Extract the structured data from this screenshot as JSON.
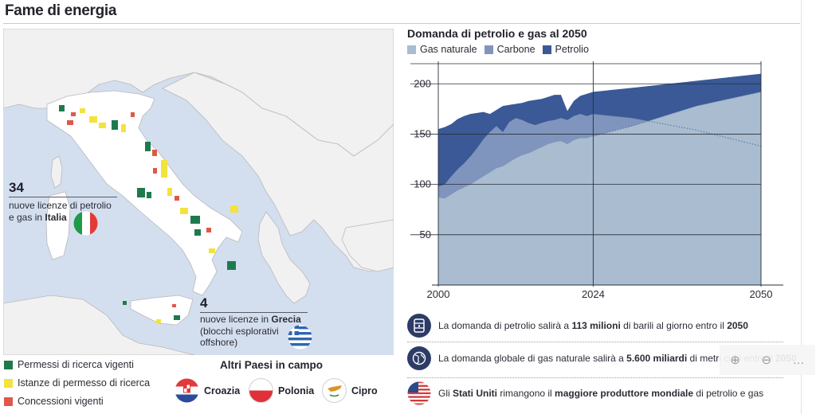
{
  "page": {
    "title": "Fame di energia"
  },
  "map": {
    "italy_count": "34",
    "italy_text_1": "nuove licenze di petrolio",
    "italy_text_2": "e gas in ",
    "italy_country": "Italia",
    "greece_count": "4",
    "greece_text_1": "nuove licenze in ",
    "greece_country": "Grecia",
    "greece_text_2": "(blocchi esplorativi",
    "greece_text_3": "offshore)",
    "colors": {
      "sea": "#d3dfee",
      "land": "#f1f1f1",
      "italy": "#ffffff",
      "border": "#b9b9b9"
    },
    "legend": [
      {
        "label": "Permessi di ricerca vigenti",
        "color": "#1e7a4e"
      },
      {
        "label": "Istanze di permesso di ricerca",
        "color": "#f3e33c"
      },
      {
        "label": "Concessioni vigenti",
        "color": "#e0584a"
      }
    ],
    "other_countries_title": "Altri Paesi in campo",
    "other_countries": [
      "Croazia",
      "Polonia",
      "Cipro"
    ]
  },
  "chart_data": {
    "type": "area",
    "title": "Domanda di petrolio e gas al 2050",
    "legend": [
      "Gas naturale",
      "Carbone",
      "Petrolio"
    ],
    "colors": {
      "Gas naturale": "#a9bcd0",
      "Carbone": "#7f95bd",
      "Petrolio": "#3a5996"
    },
    "x_ticks": [
      "2000",
      "2024",
      "2050"
    ],
    "y_ticks": [
      50,
      100,
      150,
      200
    ],
    "xlim": [
      2000,
      2050
    ],
    "ylim": [
      0,
      220
    ],
    "projection_start": 2024,
    "series": [
      {
        "name": "Gas naturale",
        "x": [
          2000,
          2001,
          2002,
          2003,
          2004,
          2005,
          2006,
          2007,
          2008,
          2009,
          2010,
          2011,
          2012,
          2013,
          2014,
          2015,
          2016,
          2017,
          2018,
          2019,
          2020,
          2021,
          2022,
          2023,
          2024,
          2030,
          2040,
          2050
        ],
        "values": [
          87,
          86,
          90,
          94,
          97,
          100,
          104,
          108,
          112,
          116,
          118,
          122,
          126,
          129,
          131,
          134,
          137,
          140,
          142,
          143,
          140,
          144,
          146,
          146,
          148,
          158,
          178,
          192
        ]
      },
      {
        "name": "Carbone",
        "x": [
          2000,
          2001,
          2002,
          2003,
          2004,
          2005,
          2006,
          2007,
          2008,
          2009,
          2010,
          2011,
          2012,
          2013,
          2014,
          2015,
          2016,
          2017,
          2018,
          2019,
          2020,
          2021,
          2022,
          2023,
          2024,
          2030,
          2040,
          2050
        ],
        "values": [
          98,
          100,
          108,
          115,
          121,
          128,
          136,
          145,
          152,
          158,
          152,
          162,
          166,
          164,
          161,
          159,
          161,
          163,
          164,
          166,
          164,
          168,
          170,
          168,
          170,
          166,
          154,
          138
        ]
      },
      {
        "name": "Petrolio",
        "x": [
          2000,
          2001,
          2002,
          2003,
          2004,
          2005,
          2006,
          2007,
          2008,
          2009,
          2010,
          2011,
          2012,
          2013,
          2014,
          2015,
          2016,
          2017,
          2018,
          2019,
          2020,
          2021,
          2022,
          2023,
          2024,
          2030,
          2040,
          2050
        ],
        "values": [
          155,
          157,
          160,
          165,
          168,
          170,
          171,
          172,
          170,
          174,
          178,
          179,
          180,
          181,
          183,
          184,
          185,
          187,
          189,
          189,
          173,
          183,
          188,
          190,
          192,
          196,
          203,
          210
        ]
      }
    ]
  },
  "facts": [
    {
      "icon": "oil-barrel-icon",
      "pre": "La domanda di petrolio salirà a ",
      "b1": "113 milioni",
      "mid": " di barili al giorno entro il ",
      "b2": "2050",
      "post": ""
    },
    {
      "icon": "globe-icon",
      "pre": "La domanda globale di gas naturale salirà a ",
      "b1": "5.600 miliardi",
      "mid": " di metri cubi entro il ",
      "b2": "2050",
      "post": ""
    },
    {
      "icon": "usa-flag-icon",
      "pre": "Gli ",
      "b1": "Stati Uniti",
      "mid": " rimangono il ",
      "b2": "maggiore produttore mondiale",
      "post": " di petrolio e gas"
    }
  ],
  "zoom": {
    "in": "⊕",
    "out": "⊖",
    "more": "…"
  }
}
